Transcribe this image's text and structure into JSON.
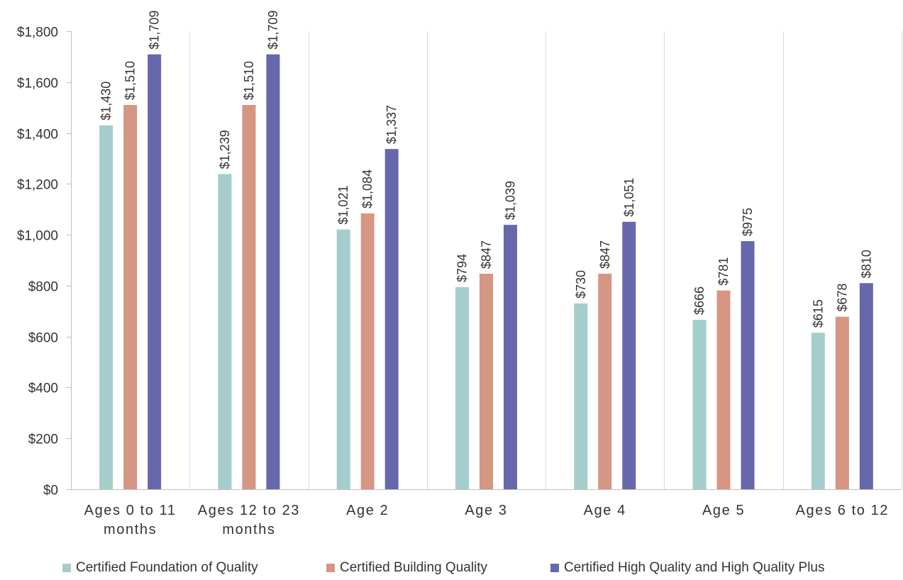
{
  "chart_data": {
    "type": "bar",
    "title": "",
    "xlabel": "",
    "ylabel": "",
    "ylim": [
      0,
      1800
    ],
    "grid": "vertical category separators",
    "legend_position": "bottom",
    "y_ticks": [
      "$0",
      "$200",
      "$400",
      "$600",
      "$800",
      "$1,000",
      "$1,200",
      "$1,400",
      "$1,600",
      "$1,800"
    ],
    "y_tick_values": [
      0,
      200,
      400,
      600,
      800,
      1000,
      1200,
      1400,
      1600,
      1800
    ],
    "categories": [
      [
        "Ages 0 to 11",
        "months"
      ],
      [
        "Ages 12 to 23",
        "months"
      ],
      [
        "Age 2"
      ],
      [
        "Age 3"
      ],
      [
        "Age 4"
      ],
      [
        "Age 5"
      ],
      [
        "Ages 6 to 12"
      ]
    ],
    "series": [
      {
        "name": "Certified Foundation of Quality",
        "color": "#a4cdcb",
        "values": [
          1430,
          1239,
          1021,
          794,
          730,
          666,
          615
        ],
        "labels": [
          "$1,430",
          "$1,239",
          "$1,021",
          "$794",
          "$730",
          "$666",
          "$615"
        ]
      },
      {
        "name": "Certified Building Quality",
        "color": "#d59684",
        "values": [
          1510,
          1510,
          1084,
          847,
          847,
          781,
          678
        ],
        "labels": [
          "$1,510",
          "$1,510",
          "$1,084",
          "$847",
          "$847",
          "$781",
          "$678"
        ]
      },
      {
        "name": "Certified High Quality and High Quality Plus",
        "color": "#6767ac",
        "values": [
          1709,
          1709,
          1337,
          1039,
          1051,
          975,
          810
        ],
        "labels": [
          "$1,709",
          "$1,709",
          "$1,337",
          "$1,039",
          "$1,051",
          "$975",
          "$810"
        ]
      }
    ]
  }
}
